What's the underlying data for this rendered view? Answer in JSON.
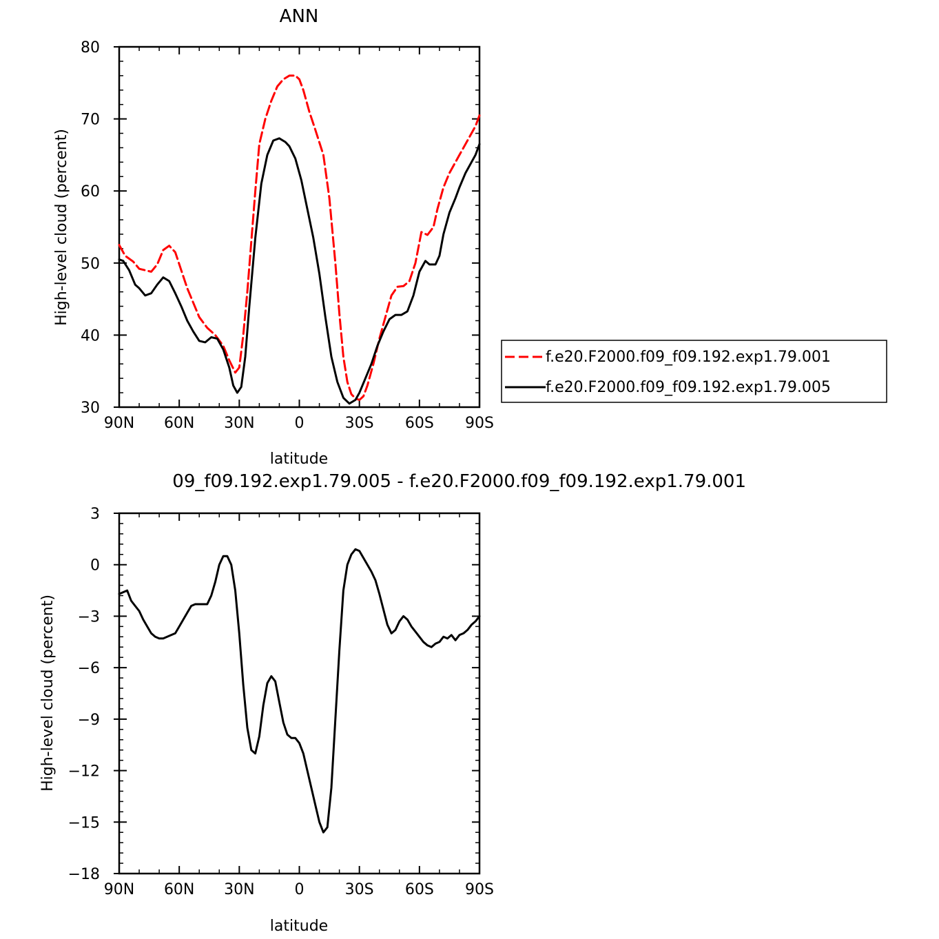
{
  "chart_data": [
    {
      "type": "line",
      "title": "ANN",
      "xlabel": "latitude",
      "ylabel": "High-level cloud (percent)",
      "xlim": [
        90,
        -90
      ],
      "ylim": [
        30,
        80
      ],
      "xticks": [
        90,
        60,
        30,
        0,
        -30,
        -60,
        -90
      ],
      "xtick_labels": [
        "90N",
        "60N",
        "30N",
        "0",
        "30S",
        "60S",
        "90S"
      ],
      "yticks": [
        30,
        40,
        50,
        60,
        70,
        80
      ],
      "ytick_labels": [
        "30",
        "40",
        "50",
        "60",
        "70",
        "80"
      ],
      "grid": false,
      "legend_position": "right",
      "series": [
        {
          "name": "f.e20.F2000.f09_f09.192.exp1.79.001",
          "color": "#ff0000",
          "dash": "dashed",
          "x": [
            90,
            87,
            83,
            80,
            77,
            74,
            71,
            68,
            65,
            62,
            59,
            56,
            53,
            50,
            46,
            42,
            38,
            35,
            32,
            30,
            28,
            26,
            24,
            22,
            20,
            17,
            14,
            11,
            8,
            5,
            2,
            0,
            -2,
            -5,
            -8,
            -12,
            -15,
            -18,
            -20,
            -22,
            -24,
            -26,
            -28,
            -30,
            -32,
            -34,
            -37,
            -40,
            -43,
            -46,
            -49,
            -52,
            -55,
            -58,
            -61,
            -64,
            -67,
            -69,
            -72,
            -75,
            -78,
            -80,
            -83,
            -86,
            -88,
            -90
          ],
          "values": [
            52.5,
            51.0,
            50.2,
            49.2,
            49.0,
            48.8,
            49.8,
            51.8,
            52.4,
            51.5,
            49.0,
            46.5,
            44.5,
            42.5,
            41.0,
            40.0,
            38.5,
            36.5,
            34.8,
            35.5,
            40.0,
            46.0,
            53.0,
            60.0,
            66.5,
            70.0,
            72.5,
            74.5,
            75.5,
            76.0,
            76.0,
            75.5,
            74.0,
            71.0,
            68.5,
            65.0,
            59.0,
            50.0,
            43.0,
            37.0,
            33.5,
            31.8,
            31.2,
            31.0,
            31.5,
            33.0,
            36.0,
            39.5,
            42.5,
            45.5,
            46.7,
            46.8,
            47.5,
            50.0,
            54.3,
            53.9,
            55.0,
            57.5,
            60.5,
            62.5,
            64.0,
            65.0,
            66.5,
            68.0,
            69.0,
            70.5
          ]
        },
        {
          "name": "f.e20.F2000.f09_f09.192.exp1.79.005",
          "color": "#000000",
          "dash": "solid",
          "x": [
            90,
            88,
            85,
            82,
            80,
            77,
            74,
            71,
            68,
            65,
            62,
            59,
            56,
            53,
            50,
            47,
            44,
            41,
            38,
            35,
            33,
            31,
            29,
            27,
            25,
            22,
            19,
            16,
            13,
            10,
            7,
            5,
            2,
            -1,
            -4,
            -7,
            -10,
            -13,
            -16,
            -19,
            -22,
            -25,
            -28,
            -30,
            -33,
            -36,
            -39,
            -42,
            -45,
            -48,
            -51,
            -54,
            -57,
            -60,
            -63,
            -65,
            -68,
            -70,
            -72,
            -75,
            -78,
            -80,
            -83,
            -86,
            -88,
            -90
          ],
          "values": [
            50.5,
            50.3,
            49.0,
            47.0,
            46.5,
            45.5,
            45.8,
            47.0,
            48.0,
            47.5,
            45.8,
            44.0,
            42.0,
            40.5,
            39.2,
            39.0,
            39.7,
            39.5,
            38.0,
            35.5,
            33.0,
            32.0,
            32.8,
            37.0,
            44.0,
            53.5,
            61.0,
            65.0,
            67.0,
            67.3,
            66.8,
            66.2,
            64.5,
            61.5,
            57.5,
            53.5,
            48.5,
            42.5,
            37.0,
            33.5,
            31.3,
            30.5,
            31.0,
            32.0,
            34.0,
            36.0,
            38.5,
            40.5,
            42.2,
            42.8,
            42.8,
            43.3,
            45.5,
            48.8,
            50.3,
            49.8,
            49.8,
            51.0,
            54.0,
            57.0,
            59.0,
            60.5,
            62.5,
            64.0,
            65.0,
            66.5
          ]
        }
      ]
    },
    {
      "type": "line",
      "title": "09_f09.192.exp1.79.005 - f.e20.F2000.f09_f09.192.exp1.79.001",
      "xlabel": "latitude",
      "ylabel": "High-level cloud (percent)",
      "xlim": [
        90,
        -90
      ],
      "ylim": [
        -18,
        3
      ],
      "xticks": [
        90,
        60,
        30,
        0,
        -30,
        -60,
        -90
      ],
      "xtick_labels": [
        "90N",
        "60N",
        "30N",
        "0",
        "30S",
        "60S",
        "90S"
      ],
      "yticks": [
        3,
        0,
        -3,
        -6,
        -9,
        -12,
        -15,
        -18
      ],
      "ytick_labels": [
        "3",
        "0",
        "−3",
        "−6",
        "−9",
        "−12",
        "−15",
        "−18"
      ],
      "grid": false,
      "series": [
        {
          "color": "#000000",
          "dash": "solid",
          "x": [
            90,
            88,
            86,
            84,
            82,
            80,
            78,
            76,
            74,
            72,
            70,
            68,
            66,
            64,
            62,
            60,
            58,
            56,
            54,
            52,
            50,
            48,
            46,
            44,
            42,
            40,
            38,
            36,
            34,
            32,
            30,
            28,
            26,
            24,
            22,
            20,
            18,
            16,
            14,
            12,
            10,
            8,
            6,
            4,
            2,
            0,
            -2,
            -4,
            -6,
            -8,
            -10,
            -12,
            -14,
            -16,
            -18,
            -20,
            -22,
            -24,
            -26,
            -28,
            -30,
            -32,
            -34,
            -36,
            -38,
            -40,
            -42,
            -44,
            -46,
            -48,
            -50,
            -52,
            -54,
            -56,
            -58,
            -60,
            -62,
            -64,
            -66,
            -68,
            -70,
            -72,
            -74,
            -76,
            -78,
            -80,
            -82,
            -84,
            -86,
            -88,
            -90
          ],
          "values": [
            -1.7,
            -1.6,
            -1.5,
            -2.1,
            -2.4,
            -2.7,
            -3.2,
            -3.6,
            -4.0,
            -4.2,
            -4.3,
            -4.3,
            -4.2,
            -4.1,
            -4.0,
            -3.6,
            -3.2,
            -2.8,
            -2.4,
            -2.3,
            -2.3,
            -2.3,
            -2.3,
            -1.8,
            -1.0,
            0.0,
            0.5,
            0.5,
            0.0,
            -1.5,
            -4.0,
            -7.0,
            -9.5,
            -10.8,
            -11.0,
            -10.0,
            -8.2,
            -6.9,
            -6.5,
            -6.8,
            -8.0,
            -9.2,
            -9.9,
            -10.1,
            -10.1,
            -10.4,
            -11.0,
            -12.0,
            -13.0,
            -14.0,
            -15.0,
            -15.6,
            -15.3,
            -13.0,
            -9.0,
            -5.0,
            -1.5,
            0.0,
            0.6,
            0.9,
            0.8,
            0.4,
            0.0,
            -0.4,
            -0.9,
            -1.7,
            -2.6,
            -3.5,
            -4.0,
            -3.8,
            -3.3,
            -3.0,
            -3.2,
            -3.6,
            -3.9,
            -4.2,
            -4.5,
            -4.7,
            -4.8,
            -4.6,
            -4.5,
            -4.2,
            -4.3,
            -4.1,
            -4.4,
            -4.1,
            -4.0,
            -3.8,
            -3.5,
            -3.3,
            -3.0
          ]
        }
      ]
    }
  ]
}
